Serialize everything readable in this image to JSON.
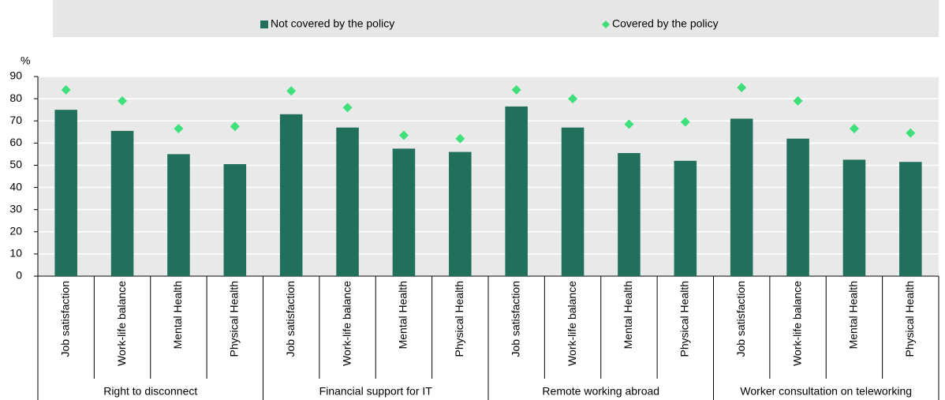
{
  "chart_data": {
    "type": "bar",
    "y_label": "%",
    "categories": [
      "Job satisfaction",
      "Work-life balance",
      "Mental Health",
      "Physical Health",
      "Job satisfaction",
      "Work-life balance",
      "Mental Health",
      "Physical Health",
      "Job satisfaction",
      "Work-life balance",
      "Mental Health",
      "Physical Health",
      "Job satisfaction",
      "Work-life balance",
      "Mental Health",
      "Physical Health"
    ],
    "groups": [
      "Right to disconnect",
      "Financial support for IT",
      "Remote working abroad",
      "Worker consultation on teleworking"
    ],
    "series": [
      {
        "name": "Not covered by the policy",
        "color": "#21705c",
        "marker": "bar",
        "values": [
          75,
          65.5,
          55,
          50.5,
          73,
          67,
          57.5,
          56,
          76.5,
          67,
          55.5,
          52,
          71,
          62,
          52.5,
          51.5
        ]
      },
      {
        "name": "Covered by the policy",
        "color": "#3fe07c",
        "marker": "diamond",
        "values": [
          84,
          79,
          66.5,
          67.5,
          83.5,
          76,
          63.5,
          62,
          84,
          80,
          68.5,
          69.5,
          85,
          79,
          66.5,
          64.5
        ]
      }
    ],
    "ylim": [
      0,
      90
    ],
    "yticks": [
      0,
      10,
      20,
      30,
      40,
      50,
      60,
      70,
      80,
      90
    ],
    "grid": true
  }
}
